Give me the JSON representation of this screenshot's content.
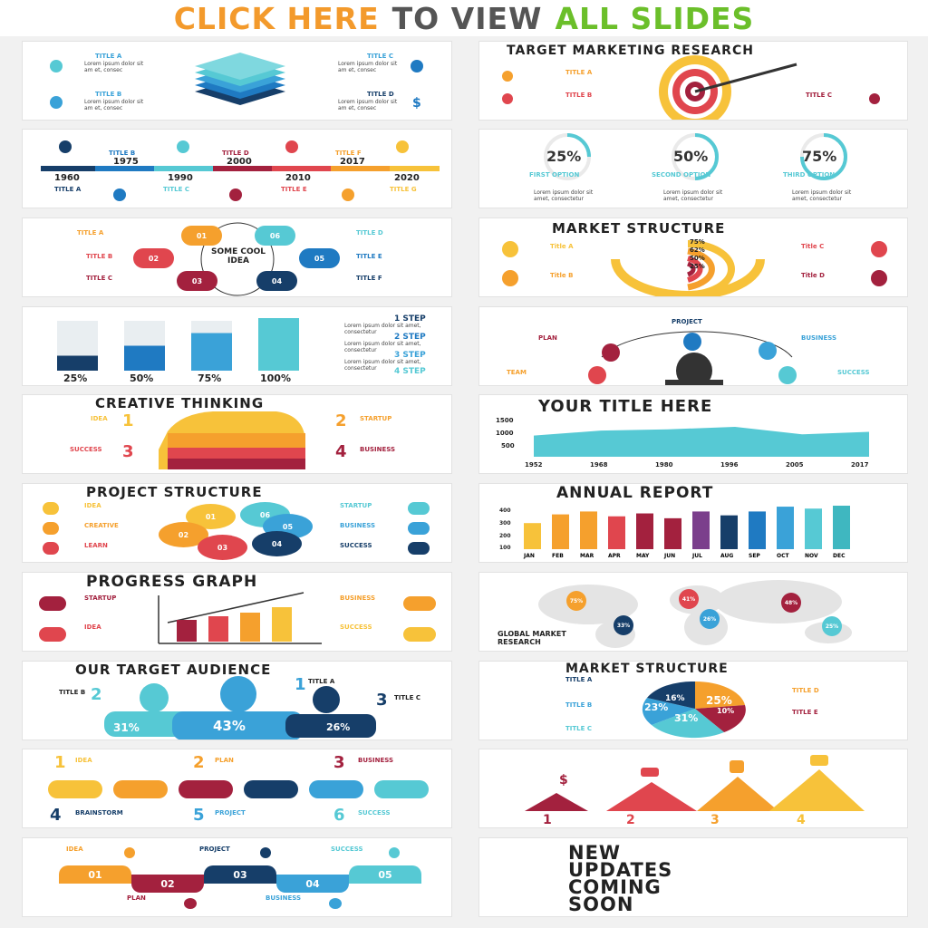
{
  "banner": {
    "part1": "CLICK HERE",
    "part2": "TO VIEW",
    "part3": "ALL SLIDES",
    "color1": "#f39a2c",
    "color2": "#555555",
    "color3": "#6bbf2a"
  },
  "colors": {
    "orange": "#f5a02d",
    "red": "#e0464e",
    "maroon": "#a3213e",
    "blue": "#1f7ac2",
    "navy": "#163e69",
    "cyan": "#56c9d4",
    "teal": "#3fb7c0",
    "yellow": "#f7c23a"
  },
  "s1": {
    "a": "TITLE A",
    "b": "TITLE B",
    "c": "TITLE C",
    "d": "TITLE D",
    "txt": "Lorem ipsum dolor sit am et, consec"
  },
  "s2": {
    "title": "TARGET MARKETING RESEARCH",
    "a": "TITLE A",
    "b": "TITLE B",
    "c": "TITLE C"
  },
  "s3": {
    "years": [
      "1960",
      "1975",
      "1990",
      "2000",
      "2010",
      "2017",
      "2020"
    ],
    "titles": [
      "TITLE A",
      "TITLE B",
      "TITLE C",
      "TITLE D",
      "TITLE E",
      "TITLE F",
      "TITLE G"
    ]
  },
  "s4": {
    "pcts": [
      "25%",
      "50%",
      "75%"
    ],
    "labels": [
      "FIRST OPTION",
      "SECOND OPTION",
      "THIRD OPTION"
    ],
    "txt": "Lorem ipsum dolor sit amet, consectetur"
  },
  "s5": {
    "center": "SOME COOL IDEA",
    "nums": [
      "01",
      "06",
      "02",
      "05",
      "03",
      "04"
    ],
    "titles": [
      "TITLE A",
      "TITLE B",
      "TITLE C",
      "TITLE D",
      "TITLE E",
      "TITLE F"
    ]
  },
  "s6": {
    "title": "MARKET STRUCTURE",
    "pcts": [
      "75%",
      "62%",
      "50%",
      "25%"
    ],
    "titles": [
      "Title A",
      "Title B",
      "Title C",
      "Title D"
    ]
  },
  "s7": {
    "pcts": [
      "25%",
      "50%",
      "75%",
      "100%"
    ],
    "steps": [
      "1 STEP",
      "2 STEP",
      "3 STEP",
      "4 STEP"
    ],
    "txt": "Lorem ipsum dolor sit amet, consectetur"
  },
  "s8": {
    "labels": [
      "PROJECT",
      "PLAN",
      "BUSINESS",
      "TEAM",
      "SUCCESS"
    ]
  },
  "s9": {
    "title": "CREATIVE THINKING",
    "labels": [
      "IDEA",
      "STARTUP",
      "SUCCESS",
      "BUSINESS"
    ],
    "nums": [
      "1",
      "2",
      "3",
      "4"
    ]
  },
  "s10": {
    "title": "YOUR TITLE HERE",
    "yticks": [
      "1500",
      "1000",
      "500"
    ],
    "xticks": [
      "1952",
      "1968",
      "1980",
      "1996",
      "2005",
      "2017"
    ]
  },
  "s11": {
    "title": "PROJECT STRUCTURE",
    "left": [
      "IDEA",
      "CREATIVE",
      "LEARN"
    ],
    "right": [
      "STARTUP",
      "BUSINESS",
      "SUCCESS"
    ],
    "nums": [
      "01",
      "06",
      "02",
      "05",
      "03",
      "04"
    ]
  },
  "s12": {
    "title": "ANNUAL REPORT",
    "yticks": [
      "400",
      "300",
      "200",
      "100"
    ]
  },
  "s13": {
    "title": "PROGRESS GRAPH",
    "left": [
      "STARTUP",
      "IDEA"
    ],
    "right": [
      "BUSINESS",
      "SUCCESS"
    ]
  },
  "s14": {
    "caption": "GLOBAL MARKET RESEARCH",
    "pins": [
      "75%",
      "41%",
      "48%",
      "33%",
      "26%",
      "25%"
    ]
  },
  "s15": {
    "title": "OUR TARGET AUDIENCE",
    "pcts": [
      "31%",
      "43%",
      "26%"
    ],
    "titles": [
      "TITLE A",
      "TITLE B",
      "TITLE C"
    ]
  },
  "s16": {
    "title": "MARKET STRUCTURE",
    "pcts": [
      "16%",
      "25%",
      "23%",
      "10%",
      "31%"
    ],
    "titles": [
      "TITLE A",
      "TITLE B",
      "TITLE C",
      "TITLE D",
      "TITLE E"
    ]
  },
  "s17": {
    "labels": [
      "IDEA",
      "PLAN",
      "BUSINESS",
      "BRAINSTORM",
      "PROJECT",
      "SUCCESS"
    ],
    "nums": [
      "1",
      "2",
      "3",
      "4",
      "5",
      "6"
    ]
  },
  "s18": {
    "nums": [
      "1",
      "2",
      "3",
      "4"
    ]
  },
  "s19": {
    "labels": [
      "IDEA",
      "PROJECT",
      "SUCCESS",
      "PLAN",
      "BUSINESS"
    ],
    "nums": [
      "01",
      "02",
      "03",
      "04",
      "05"
    ]
  },
  "s20": {
    "line1": "NEW",
    "line2": "UPDATES",
    "line3": "COMING",
    "line4": "SOON"
  },
  "lorem": "Lorem ipsum dolor sit amet, consectetur",
  "chart_data": [
    {
      "type": "bar",
      "title": "ANNUAL REPORT",
      "categories": [
        "JAN",
        "FEB",
        "MAR",
        "APR",
        "MAY",
        "JUN",
        "JUL",
        "AUG",
        "SEP",
        "OCT",
        "NOV",
        "DEC"
      ],
      "values": [
        270,
        360,
        390,
        340,
        370,
        320,
        390,
        350,
        390,
        440,
        420,
        450
      ],
      "ylim": [
        0,
        450
      ]
    },
    {
      "type": "area",
      "title": "YOUR TITLE HERE",
      "x": [
        "1952",
        "1968",
        "1980",
        "1996",
        "2005",
        "2017"
      ],
      "values": [
        850,
        1050,
        1100,
        1200,
        900,
        1000
      ],
      "ylim": [
        0,
        1600
      ]
    }
  ]
}
